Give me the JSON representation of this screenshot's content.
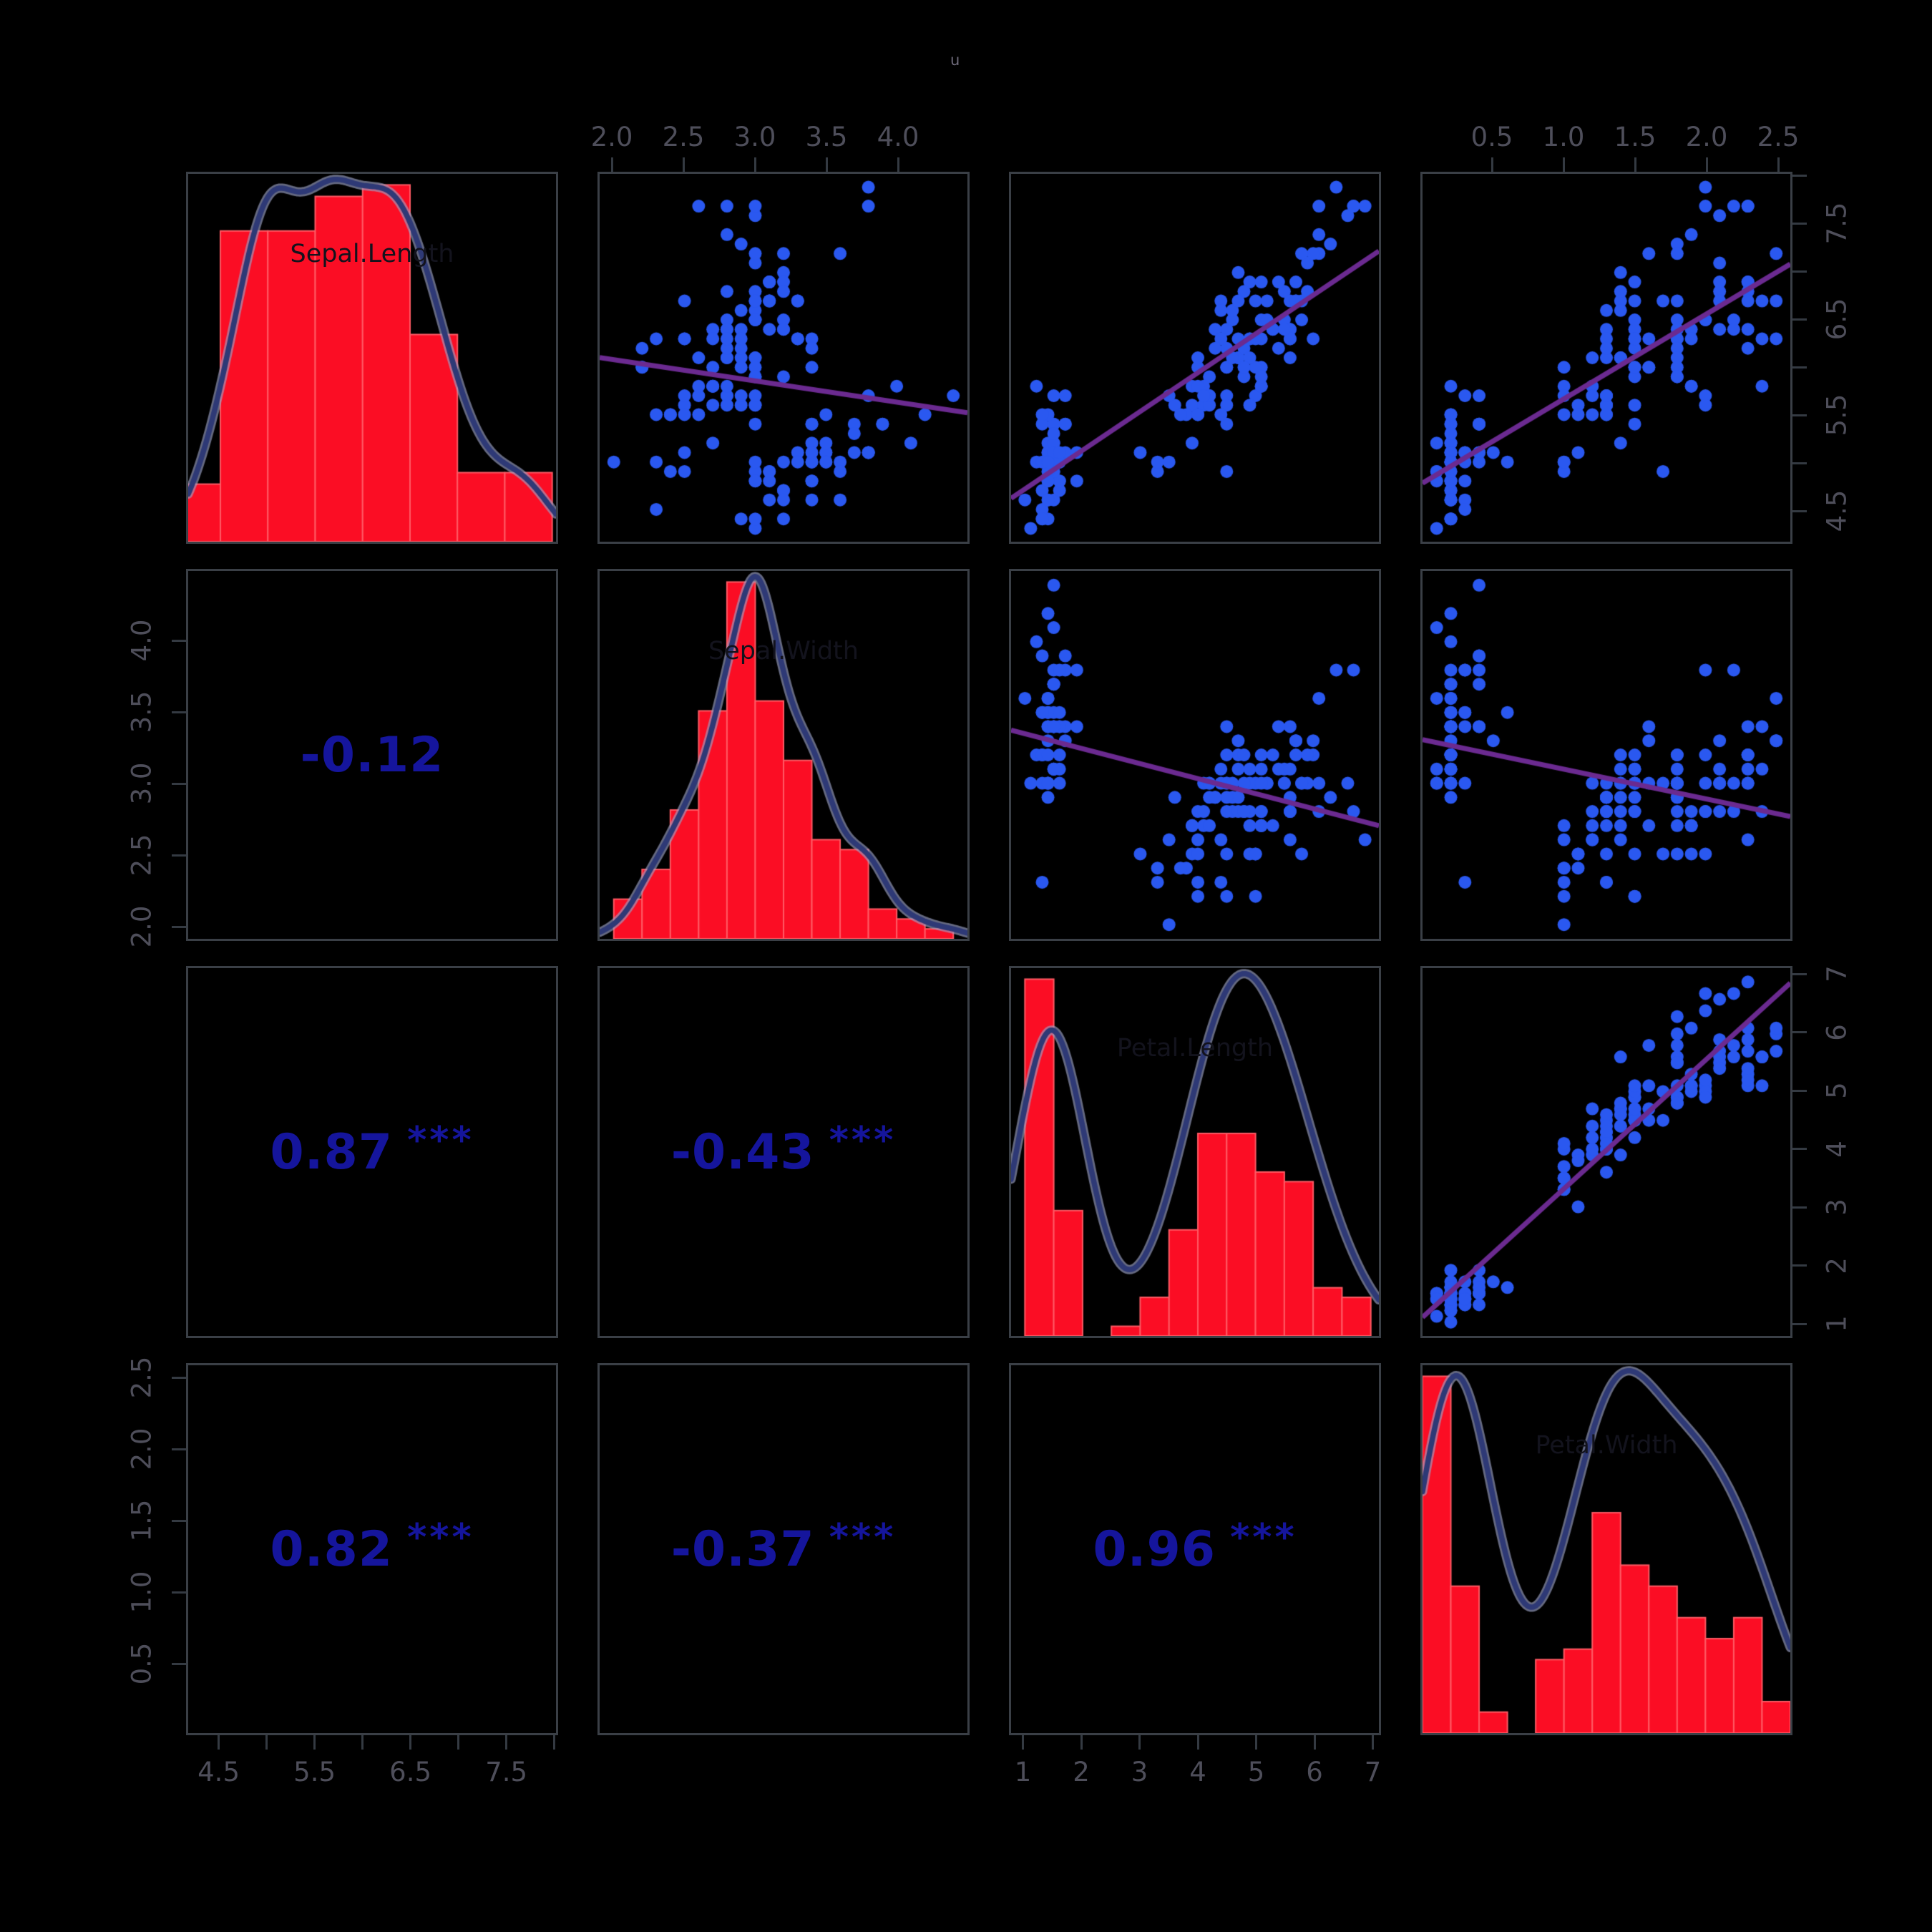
{
  "figure": {
    "title_glyph": "u",
    "background": "#000000",
    "colors": {
      "histogram_fill": "#fb0d24",
      "histogram_edge": "#ff5a64",
      "density_core": "#2e3976",
      "density_halo": "#9ba2c4",
      "point": "#2a58f0",
      "regression": "#6b2a90",
      "correlation": "#15159c",
      "border": "#3a3f46",
      "tick": "#343a42",
      "tick_label": "#4e4e5a",
      "diag_title": "#13131d",
      "title_glyph": "#6e6a7a"
    }
  },
  "chart_data": {
    "type": "scatter",
    "subtype": "scatterplot_matrix_pairs_panels",
    "title": "",
    "legend": "none",
    "grid": "off",
    "columns": [
      "Sepal.Length",
      "Sepal.Width",
      "Petal.Length",
      "Petal.Width"
    ],
    "diagonal_labels": [
      "Sepal.Length",
      "Sepal.Width",
      "Petal.Length",
      "Petal.Width"
    ],
    "axes": {
      "Sepal.Length": {
        "min": 4.16,
        "max": 8.04,
        "tick_values": [
          4.5,
          5.0,
          5.5,
          6.0,
          6.5,
          7.0,
          7.5,
          8.0
        ],
        "tick_labels": [
          "4.5",
          "",
          "5.5",
          "",
          "6.5",
          "",
          "7.5",
          ""
        ]
      },
      "Sepal.Width": {
        "min": 1.9,
        "max": 4.5,
        "tick_values": [
          2.0,
          2.5,
          3.0,
          3.5,
          4.0
        ],
        "tick_labels": [
          "2.0",
          "2.5",
          "3.0",
          "3.5",
          "4.0"
        ]
      },
      "Petal.Length": {
        "min": 0.76,
        "max": 7.14,
        "tick_values": [
          1,
          2,
          3,
          4,
          5,
          6,
          7
        ],
        "tick_labels": [
          "1",
          "2",
          "3",
          "4",
          "5",
          "6",
          "7"
        ]
      },
      "Petal.Width": {
        "min": 0.0,
        "max": 2.6,
        "tick_values": [
          0.5,
          1.0,
          1.5,
          2.0,
          2.5
        ],
        "tick_labels": [
          "0.5",
          "1.0",
          "1.5",
          "2.0",
          "2.5"
        ]
      }
    },
    "axis_sides": {
      "top_columns": [
        1,
        3
      ],
      "bottom_columns": [
        0,
        2
      ],
      "left_rows": [
        1,
        3
      ],
      "right_rows": [
        0,
        2
      ]
    },
    "histograms": [
      {
        "variable": "Sepal.Length",
        "start": 4.0,
        "step": 0.5,
        "counts": [
          5,
          27,
          27,
          30,
          31,
          18,
          6,
          6
        ]
      },
      {
        "variable": "Sepal.Width",
        "start": 2.0,
        "step": 0.2,
        "counts": [
          4,
          7,
          13,
          23,
          36,
          24,
          18,
          10,
          9,
          3,
          2,
          1
        ]
      },
      {
        "variable": "Petal.Length",
        "start": 1.0,
        "step": 0.5,
        "counts": [
          37,
          13,
          0,
          1,
          4,
          11,
          21,
          21,
          17,
          16,
          5,
          4
        ]
      },
      {
        "variable": "Petal.Width",
        "start": 0.0,
        "step": 0.2,
        "counts": [
          34,
          14,
          2,
          0,
          7,
          8,
          21,
          16,
          14,
          11,
          9,
          11,
          3
        ]
      }
    ],
    "correlations": [
      {
        "row": 1,
        "col": 0,
        "text": "-0.12",
        "stars": ""
      },
      {
        "row": 2,
        "col": 0,
        "text": "0.87",
        "stars": "***"
      },
      {
        "row": 2,
        "col": 1,
        "text": "-0.43",
        "stars": "***"
      },
      {
        "row": 3,
        "col": 0,
        "text": "0.82",
        "stars": "***"
      },
      {
        "row": 3,
        "col": 1,
        "text": "-0.37",
        "stars": "***"
      },
      {
        "row": 3,
        "col": 2,
        "text": "0.96",
        "stars": "***"
      }
    ],
    "points": [
      [
        5.1,
        3.5,
        1.4,
        0.2
      ],
      [
        4.9,
        3.0,
        1.4,
        0.2
      ],
      [
        4.7,
        3.2,
        1.3,
        0.2
      ],
      [
        4.6,
        3.1,
        1.5,
        0.2
      ],
      [
        5.0,
        3.6,
        1.4,
        0.2
      ],
      [
        5.4,
        3.9,
        1.7,
        0.4
      ],
      [
        4.6,
        3.4,
        1.4,
        0.3
      ],
      [
        5.0,
        3.4,
        1.5,
        0.2
      ],
      [
        4.4,
        2.9,
        1.4,
        0.2
      ],
      [
        4.9,
        3.1,
        1.5,
        0.1
      ],
      [
        5.4,
        3.7,
        1.5,
        0.2
      ],
      [
        4.8,
        3.4,
        1.6,
        0.2
      ],
      [
        4.8,
        3.0,
        1.4,
        0.1
      ],
      [
        4.3,
        3.0,
        1.1,
        0.1
      ],
      [
        5.8,
        4.0,
        1.2,
        0.2
      ],
      [
        5.7,
        4.4,
        1.5,
        0.4
      ],
      [
        5.4,
        3.9,
        1.3,
        0.4
      ],
      [
        5.1,
        3.5,
        1.4,
        0.3
      ],
      [
        5.7,
        3.8,
        1.7,
        0.3
      ],
      [
        5.1,
        3.8,
        1.5,
        0.3
      ],
      [
        5.4,
        3.4,
        1.7,
        0.2
      ],
      [
        5.1,
        3.7,
        1.5,
        0.4
      ],
      [
        4.6,
        3.6,
        1.0,
        0.2
      ],
      [
        5.1,
        3.3,
        1.7,
        0.5
      ],
      [
        4.8,
        3.4,
        1.9,
        0.2
      ],
      [
        5.0,
        3.0,
        1.6,
        0.2
      ],
      [
        5.0,
        3.4,
        1.6,
        0.4
      ],
      [
        5.2,
        3.5,
        1.5,
        0.2
      ],
      [
        5.2,
        3.4,
        1.4,
        0.2
      ],
      [
        4.7,
        3.2,
        1.6,
        0.2
      ],
      [
        4.8,
        3.1,
        1.6,
        0.2
      ],
      [
        5.4,
        3.4,
        1.5,
        0.4
      ],
      [
        5.2,
        4.1,
        1.5,
        0.1
      ],
      [
        5.5,
        4.2,
        1.4,
        0.2
      ],
      [
        4.9,
        3.1,
        1.5,
        0.2
      ],
      [
        5.0,
        3.2,
        1.2,
        0.2
      ],
      [
        5.5,
        3.5,
        1.3,
        0.2
      ],
      [
        4.9,
        3.6,
        1.4,
        0.1
      ],
      [
        4.4,
        3.0,
        1.3,
        0.2
      ],
      [
        5.1,
        3.4,
        1.5,
        0.2
      ],
      [
        5.0,
        3.5,
        1.3,
        0.3
      ],
      [
        4.5,
        2.3,
        1.3,
        0.3
      ],
      [
        4.4,
        3.2,
        1.3,
        0.2
      ],
      [
        5.0,
        3.5,
        1.6,
        0.6
      ],
      [
        5.1,
        3.8,
        1.9,
        0.4
      ],
      [
        4.8,
        3.0,
        1.4,
        0.3
      ],
      [
        5.1,
        3.8,
        1.6,
        0.2
      ],
      [
        4.6,
        3.2,
        1.4,
        0.2
      ],
      [
        5.3,
        3.7,
        1.5,
        0.2
      ],
      [
        5.0,
        3.3,
        1.4,
        0.2
      ],
      [
        7.0,
        3.2,
        4.7,
        1.4
      ],
      [
        6.4,
        3.2,
        4.5,
        1.5
      ],
      [
        6.9,
        3.1,
        4.9,
        1.5
      ],
      [
        5.5,
        2.3,
        4.0,
        1.3
      ],
      [
        6.5,
        2.8,
        4.6,
        1.5
      ],
      [
        5.7,
        2.8,
        4.5,
        1.3
      ],
      [
        6.3,
        3.3,
        4.7,
        1.6
      ],
      [
        4.9,
        2.4,
        3.3,
        1.0
      ],
      [
        6.6,
        2.9,
        4.6,
        1.3
      ],
      [
        5.2,
        2.7,
        3.9,
        1.4
      ],
      [
        5.0,
        2.0,
        3.5,
        1.0
      ],
      [
        5.9,
        3.0,
        4.2,
        1.5
      ],
      [
        6.0,
        2.2,
        4.0,
        1.0
      ],
      [
        6.1,
        2.9,
        4.7,
        1.4
      ],
      [
        5.6,
        2.9,
        3.6,
        1.3
      ],
      [
        6.7,
        3.1,
        4.4,
        1.4
      ],
      [
        5.6,
        3.0,
        4.5,
        1.5
      ],
      [
        5.8,
        2.7,
        4.1,
        1.0
      ],
      [
        6.2,
        2.2,
        4.5,
        1.5
      ],
      [
        5.6,
        2.5,
        3.9,
        1.1
      ],
      [
        5.9,
        3.2,
        4.8,
        1.8
      ],
      [
        6.1,
        2.8,
        4.0,
        1.3
      ],
      [
        6.3,
        2.5,
        4.9,
        1.5
      ],
      [
        6.1,
        2.8,
        4.7,
        1.2
      ],
      [
        6.4,
        2.9,
        4.3,
        1.3
      ],
      [
        6.6,
        3.0,
        4.4,
        1.4
      ],
      [
        6.8,
        2.8,
        4.8,
        1.4
      ],
      [
        6.7,
        3.0,
        5.0,
        1.7
      ],
      [
        6.0,
        2.9,
        4.5,
        1.5
      ],
      [
        5.7,
        2.6,
        3.5,
        1.0
      ],
      [
        5.5,
        2.4,
        3.8,
        1.1
      ],
      [
        5.5,
        2.4,
        3.7,
        1.0
      ],
      [
        5.8,
        2.7,
        3.9,
        1.2
      ],
      [
        6.0,
        2.7,
        5.1,
        1.6
      ],
      [
        5.4,
        3.0,
        4.5,
        1.5
      ],
      [
        6.0,
        3.4,
        4.5,
        1.6
      ],
      [
        6.7,
        3.1,
        4.7,
        1.5
      ],
      [
        6.3,
        2.3,
        4.4,
        1.3
      ],
      [
        5.6,
        3.0,
        4.1,
        1.3
      ],
      [
        5.5,
        2.5,
        4.0,
        1.3
      ],
      [
        5.5,
        2.6,
        4.4,
        1.2
      ],
      [
        6.1,
        3.0,
        4.6,
        1.4
      ],
      [
        5.8,
        2.6,
        4.0,
        1.2
      ],
      [
        5.0,
        2.3,
        3.3,
        1.0
      ],
      [
        5.6,
        2.7,
        4.2,
        1.3
      ],
      [
        5.7,
        3.0,
        4.2,
        1.2
      ],
      [
        5.7,
        2.9,
        4.2,
        1.3
      ],
      [
        6.2,
        2.9,
        4.3,
        1.3
      ],
      [
        5.1,
        2.5,
        3.0,
        1.1
      ],
      [
        5.7,
        2.8,
        4.1,
        1.3
      ],
      [
        6.3,
        3.3,
        6.0,
        2.5
      ],
      [
        5.8,
        2.7,
        5.1,
        1.9
      ],
      [
        7.1,
        3.0,
        5.9,
        2.1
      ],
      [
        6.3,
        2.9,
        5.6,
        1.8
      ],
      [
        6.5,
        3.0,
        5.8,
        2.2
      ],
      [
        7.6,
        3.0,
        6.6,
        2.1
      ],
      [
        4.9,
        2.5,
        4.5,
        1.7
      ],
      [
        7.3,
        2.9,
        6.3,
        1.8
      ],
      [
        6.7,
        2.5,
        5.8,
        1.8
      ],
      [
        7.2,
        3.6,
        6.1,
        2.5
      ],
      [
        6.5,
        3.2,
        5.1,
        2.0
      ],
      [
        6.4,
        2.7,
        5.3,
        1.9
      ],
      [
        6.8,
        3.0,
        5.5,
        2.1
      ],
      [
        5.7,
        2.5,
        5.0,
        2.0
      ],
      [
        5.8,
        2.8,
        5.1,
        2.4
      ],
      [
        6.4,
        3.2,
        5.3,
        2.3
      ],
      [
        6.5,
        3.0,
        5.5,
        1.8
      ],
      [
        7.7,
        3.8,
        6.7,
        2.2
      ],
      [
        7.7,
        2.6,
        6.9,
        2.3
      ],
      [
        6.0,
        2.2,
        5.0,
        1.5
      ],
      [
        6.9,
        3.2,
        5.7,
        2.3
      ],
      [
        5.6,
        2.8,
        4.9,
        2.0
      ],
      [
        7.7,
        2.8,
        6.7,
        2.0
      ],
      [
        6.3,
        2.7,
        4.9,
        1.8
      ],
      [
        6.7,
        3.3,
        5.7,
        2.1
      ],
      [
        7.2,
        3.2,
        6.0,
        1.8
      ],
      [
        6.2,
        2.8,
        4.8,
        1.8
      ],
      [
        6.1,
        3.0,
        4.9,
        1.8
      ],
      [
        6.4,
        2.8,
        5.6,
        2.1
      ],
      [
        7.2,
        3.0,
        5.8,
        1.6
      ],
      [
        7.4,
        2.8,
        6.1,
        1.9
      ],
      [
        7.9,
        3.8,
        6.4,
        2.0
      ],
      [
        6.4,
        2.8,
        5.6,
        2.2
      ],
      [
        6.3,
        2.8,
        5.1,
        1.5
      ],
      [
        6.1,
        2.6,
        5.6,
        1.4
      ],
      [
        7.7,
        3.0,
        6.1,
        2.3
      ],
      [
        6.3,
        3.4,
        5.6,
        2.4
      ],
      [
        6.4,
        3.1,
        5.5,
        1.8
      ],
      [
        6.0,
        3.0,
        4.8,
        1.8
      ],
      [
        6.9,
        3.1,
        5.4,
        2.1
      ],
      [
        6.7,
        3.1,
        5.6,
        2.4
      ],
      [
        6.9,
        3.1,
        5.1,
        2.3
      ],
      [
        5.8,
        2.7,
        5.1,
        1.9
      ],
      [
        6.8,
        3.2,
        5.9,
        2.3
      ],
      [
        6.7,
        3.3,
        5.7,
        2.5
      ],
      [
        6.7,
        3.0,
        5.2,
        2.3
      ],
      [
        6.3,
        2.5,
        5.0,
        1.9
      ],
      [
        6.5,
        3.0,
        5.2,
        2.0
      ],
      [
        6.2,
        3.4,
        5.4,
        2.3
      ],
      [
        5.9,
        3.0,
        5.1,
        1.8
      ]
    ]
  }
}
